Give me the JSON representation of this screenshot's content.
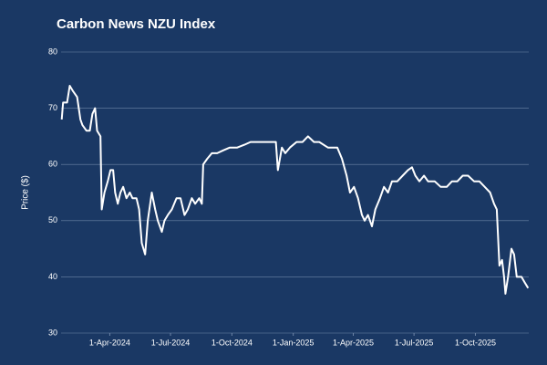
{
  "chart_data": {
    "type": "line",
    "title": "Carbon News NZU Index",
    "y_label": "Price ($)",
    "color": "#ffffff",
    "grid": true,
    "ylim": [
      30,
      80
    ],
    "yticks": [
      30,
      40,
      50,
      60,
      70,
      80
    ],
    "xlim": [
      "2024-01-19",
      "2025-12-20"
    ],
    "xticks": [
      {
        "value": "2024-04-01",
        "label": "1-Apr-2024"
      },
      {
        "value": "2024-07-01",
        "label": "1-Jul-2024"
      },
      {
        "value": "2024-10-01",
        "label": "1-Oct-2024"
      },
      {
        "value": "2025-01-01",
        "label": "1-Jan-2025"
      },
      {
        "value": "2025-04-01",
        "label": "1-Apr-2025"
      },
      {
        "value": "2025-07-01",
        "label": "1-Jul-2025"
      },
      {
        "value": "2025-10-01",
        "label": "1-Oct-2025"
      }
    ],
    "x": [
      "2024-01-20",
      "2024-01-22",
      "2024-01-28",
      "2024-02-01",
      "2024-02-06",
      "2024-02-12",
      "2024-02-17",
      "2024-02-20",
      "2024-02-26",
      "2024-03-02",
      "2024-03-06",
      "2024-03-10",
      "2024-03-13",
      "2024-03-18",
      "2024-03-20",
      "2024-03-24",
      "2024-03-29",
      "2024-04-02",
      "2024-04-06",
      "2024-04-09",
      "2024-04-13",
      "2024-04-17",
      "2024-04-21",
      "2024-04-26",
      "2024-05-01",
      "2024-05-05",
      "2024-05-11",
      "2024-05-15",
      "2024-05-19",
      "2024-05-24",
      "2024-05-28",
      "2024-06-03",
      "2024-06-08",
      "2024-06-12",
      "2024-06-18",
      "2024-06-22",
      "2024-06-27",
      "2024-07-03",
      "2024-07-10",
      "2024-07-16",
      "2024-07-22",
      "2024-07-27",
      "2024-08-02",
      "2024-08-07",
      "2024-08-13",
      "2024-08-17",
      "2024-08-19",
      "2024-08-25",
      "2024-09-01",
      "2024-09-09",
      "2024-09-18",
      "2024-09-28",
      "2024-10-09",
      "2024-10-20",
      "2024-10-29",
      "2024-11-12",
      "2024-12-02",
      "2024-12-06",
      "2024-12-09",
      "2024-12-15",
      "2024-12-20",
      "2024-12-27",
      "2025-01-06",
      "2025-01-15",
      "2025-01-23",
      "2025-02-01",
      "2025-02-09",
      "2025-02-22",
      "2025-03-08",
      "2025-03-15",
      "2025-03-22",
      "2025-03-27",
      "2025-04-02",
      "2025-04-08",
      "2025-04-14",
      "2025-04-18",
      "2025-04-23",
      "2025-04-29",
      "2025-05-04",
      "2025-05-11",
      "2025-05-17",
      "2025-05-23",
      "2025-05-29",
      "2025-06-06",
      "2025-06-14",
      "2025-06-22",
      "2025-06-28",
      "2025-07-03",
      "2025-07-09",
      "2025-07-16",
      "2025-07-22",
      "2025-08-01",
      "2025-08-10",
      "2025-08-19",
      "2025-08-27",
      "2025-09-04",
      "2025-09-12",
      "2025-09-20",
      "2025-09-29",
      "2025-10-07",
      "2025-10-15",
      "2025-10-23",
      "2025-10-29",
      "2025-11-02",
      "2025-11-06",
      "2025-11-10",
      "2025-11-13",
      "2025-11-15",
      "2025-11-19",
      "2025-11-24",
      "2025-11-28",
      "2025-12-02",
      "2025-12-09",
      "2025-12-14",
      "2025-12-19"
    ],
    "values": [
      68,
      71,
      71,
      74,
      73,
      72,
      68,
      67,
      66,
      66,
      69,
      70,
      66,
      65,
      52,
      55,
      57,
      59,
      59,
      55,
      53,
      55,
      56,
      54,
      55,
      54,
      54,
      52,
      46,
      44,
      50,
      55,
      52,
      50,
      48,
      50,
      51,
      52,
      54,
      54,
      51,
      52,
      54,
      53,
      54,
      53,
      60,
      61,
      62,
      62,
      62.5,
      63,
      63,
      63.5,
      64,
      64,
      64,
      64,
      59,
      63,
      62,
      63,
      64,
      64,
      65,
      64,
      64,
      63,
      63,
      61,
      58,
      55,
      56,
      54,
      51,
      50,
      51,
      49,
      52,
      54,
      56,
      55,
      57,
      57,
      58,
      59,
      59.5,
      58,
      57,
      58,
      57,
      57,
      56,
      56,
      57,
      57,
      58,
      58,
      57,
      57,
      56,
      55,
      53,
      52,
      42,
      43,
      40,
      37,
      40,
      45,
      44,
      40,
      40,
      39,
      38
    ]
  }
}
